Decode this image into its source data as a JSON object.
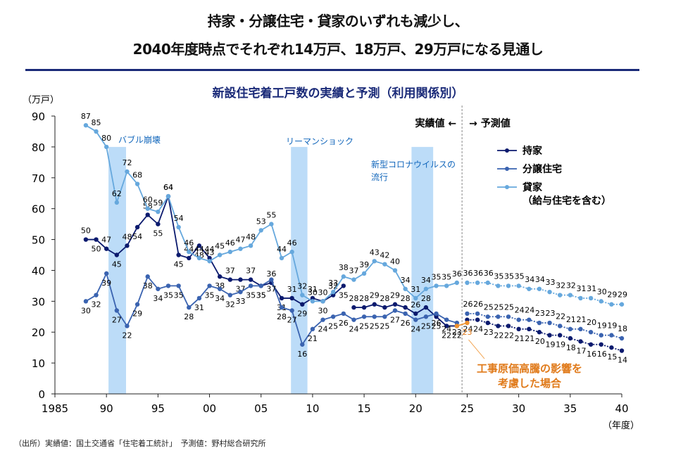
{
  "headline": {
    "line1": "持家・分譲住宅・貸家のいずれも減少し、",
    "line2": "2040年度時点でそれぞれ14万戸、18万戸、29万戸になる見通し"
  },
  "source_note": "（出所）実績値：国土交通省「住宅着工統計」　予測値：野村総合研究所",
  "chart_data": {
    "type": "line",
    "title": "新設住宅着工戸数の実績と予測（利用関係別）",
    "ylabel": "（万戸）",
    "xlabel": "（年度）",
    "ylim": [
      0,
      90
    ],
    "xlim": [
      1985,
      2040
    ],
    "yticks": [
      0,
      10,
      20,
      30,
      40,
      50,
      60,
      70,
      80,
      90
    ],
    "xticks": [
      1985,
      1990,
      1995,
      2000,
      2005,
      2010,
      2015,
      2020,
      2025,
      2030,
      2035,
      2040
    ],
    "xtick_labels": [
      "1985",
      "90",
      "95",
      "00",
      "05",
      "10",
      "15",
      "20",
      "25",
      "30",
      "35",
      "40"
    ],
    "grid": false,
    "legend_position": "top-right",
    "actual_label": "実績値 ←",
    "forecast_label": "→ 予測値",
    "forecast_start": 2024.5,
    "actual_years": [
      1988,
      1989,
      1990,
      1991,
      1992,
      1993,
      1994,
      1995,
      1996,
      1997,
      1998,
      1999,
      2000,
      2001,
      2002,
      2003,
      2004,
      2005,
      2006,
      2007,
      2008,
      2009,
      2010,
      2011,
      2012,
      2013,
      2014,
      2015,
      2016,
      2017,
      2018,
      2019,
      2020,
      2021,
      2022,
      2023,
      2024
    ],
    "forecast_years": [
      2025,
      2026,
      2027,
      2028,
      2029,
      2030,
      2031,
      2032,
      2033,
      2034,
      2035,
      2036,
      2037,
      2038,
      2039,
      2040
    ],
    "series": [
      {
        "name": "持家",
        "color": "#0b1a6e",
        "actual": [
          50,
          50,
          47,
          45,
          48,
          54,
          58,
          55,
          64,
          45,
          44,
          48,
          44,
          38,
          37,
          37,
          37,
          35,
          36,
          31,
          31,
          29,
          31,
          30,
          32,
          35,
          28,
          28,
          29,
          28,
          29,
          28,
          26,
          28,
          25,
          22,
          22
        ],
        "actual_gap_after": 2013,
        "forecast": [
          24,
          24,
          23,
          22,
          22,
          21,
          21,
          20,
          19,
          19,
          18,
          17,
          16,
          16,
          15,
          14
        ]
      },
      {
        "name": "分譲住宅",
        "color": "#3a63b0",
        "actual": [
          30,
          32,
          39,
          27,
          22,
          29,
          38,
          34,
          35,
          35,
          28,
          31,
          35,
          34,
          32,
          33,
          35,
          35,
          37,
          28,
          27,
          16,
          21,
          24,
          25,
          26,
          24,
          25,
          25,
          25,
          27,
          26,
          24,
          25,
          26,
          24,
          23
        ],
        "forecast": [
          26,
          26,
          25,
          25,
          25,
          24,
          24,
          23,
          23,
          22,
          21,
          21,
          20,
          19,
          19,
          18
        ]
      },
      {
        "name": "貸家\n（給与住宅を含む）",
        "legend_line1": "貸家",
        "legend_line2": "（給与住宅を含む）",
        "color": "#66a8dd",
        "actual": [
          87,
          85,
          80,
          62,
          72,
          68,
          60,
          59,
          64,
          54,
          46,
          44,
          43,
          45,
          46,
          47,
          48,
          53,
          55,
          44,
          46,
          32,
          30,
          30,
          33,
          38,
          37,
          39,
          43,
          42,
          40,
          34,
          31,
          34,
          35,
          35,
          36
        ],
        "forecast": [
          36,
          36,
          36,
          35,
          35,
          35,
          34,
          34,
          33,
          32,
          32,
          31,
          31,
          30,
          29,
          29
        ]
      }
    ],
    "cost_scenario": {
      "label_line1": "工事原価高騰の影響を",
      "label_line2": "考慮した場合",
      "color": "#f0922e",
      "text_color": "#e07a1a",
      "points": [
        {
          "year": 2024,
          "value": 22
        },
        {
          "year": 2025,
          "value": 23
        }
      ],
      "value_label": "23"
    },
    "events": [
      {
        "label": "バブル崩壊",
        "start": 1990.2,
        "end": 1991.9,
        "top": 80
      },
      {
        "label": "リーマンショック",
        "start": 2007.9,
        "end": 2009.5,
        "top": 80
      },
      {
        "label_line1": "新型コロナウイルスの",
        "label_line2": "流行",
        "start": 2019.6,
        "end": 2021.7,
        "top": 80
      }
    ],
    "event_color": "#bcdcf8",
    "event_text_color": "#1166bb"
  }
}
